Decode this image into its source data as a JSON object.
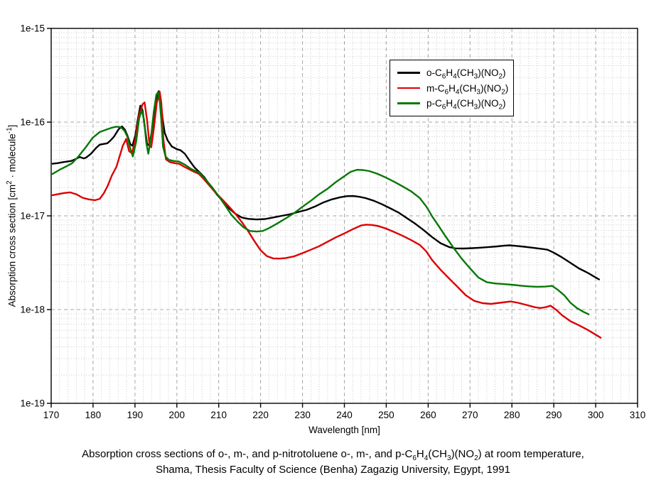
{
  "chart_data": {
    "type": "line",
    "title": "",
    "xlabel": "Wavelength [nm]",
    "ylabel": "Absorption cross section [cm^2^ · molecule^-1^]",
    "x_axis": {
      "min": 170,
      "max": 310,
      "major_tick_step": 10,
      "minor_tick_step": 2,
      "tick_labels": [
        "170",
        "180",
        "190",
        "200",
        "210",
        "220",
        "230",
        "240",
        "250",
        "260",
        "270",
        "280",
        "290",
        "300",
        "310"
      ]
    },
    "y_axis": {
      "scale": "log",
      "min": 1e-19,
      "max": 1e-15,
      "tick_labels": [
        "1e-15",
        "1e-16",
        "1e-17",
        "1e-18",
        "1e-19"
      ],
      "tick_exponents": [
        -15,
        -16,
        -17,
        -18,
        -19
      ]
    },
    "grid": {
      "major": true,
      "minor": true,
      "major_color": "#a8a8a8",
      "minor_color": "#c8c8c8"
    },
    "legend_position": "top-right",
    "series": [
      {
        "name": "o-C|6|H|4|(CH|3|)(NO|2|)",
        "color": "#000000",
        "points": [
          [
            170.3,
            3.6e-17
          ],
          [
            171.5,
            3.65e-17
          ],
          [
            173,
            3.75e-17
          ],
          [
            174.8,
            3.85e-17
          ],
          [
            175.9,
            4.05e-17
          ],
          [
            176.8,
            4.25e-17
          ],
          [
            177.8,
            4.1e-17
          ],
          [
            178.4,
            4.2e-17
          ],
          [
            179.5,
            4.6e-17
          ],
          [
            180.7,
            5.3e-17
          ],
          [
            181.6,
            5.75e-17
          ],
          [
            182.6,
            5.85e-17
          ],
          [
            183.4,
            5.95e-17
          ],
          [
            184.2,
            6.4e-17
          ],
          [
            185,
            7e-17
          ],
          [
            186.1,
            8.4e-17
          ],
          [
            186.9,
            9e-17
          ],
          [
            187.6,
            8.3e-17
          ],
          [
            188.2,
            7.2e-17
          ],
          [
            188.9,
            5.8e-17
          ],
          [
            189.4,
            5.6e-17
          ],
          [
            190.1,
            7.2e-17
          ],
          [
            190.7,
            1.08e-16
          ],
          [
            191.3,
            1.5e-16
          ],
          [
            191.8,
            1.34e-16
          ],
          [
            192.4,
            8.5e-17
          ],
          [
            192.9,
            5.9e-17
          ],
          [
            193.4,
            5.6e-17
          ],
          [
            194,
            7.8e-17
          ],
          [
            194.7,
            1.35e-16
          ],
          [
            195.3,
            2e-16
          ],
          [
            195.7,
            2.14e-16
          ],
          [
            196.1,
            1.8e-16
          ],
          [
            196.6,
            1.1e-16
          ],
          [
            197.1,
            7.7e-17
          ],
          [
            197.8,
            6.4e-17
          ],
          [
            198.8,
            5.5e-17
          ],
          [
            200,
            5.15e-17
          ],
          [
            200.9,
            5e-17
          ],
          [
            201.9,
            4.6e-17
          ],
          [
            203,
            3.9e-17
          ],
          [
            204.2,
            3.3e-17
          ],
          [
            205.3,
            2.95e-17
          ],
          [
            206.5,
            2.6e-17
          ],
          [
            208,
            2.1e-17
          ],
          [
            209.5,
            1.7e-17
          ],
          [
            211,
            1.43e-17
          ],
          [
            212.5,
            1.2e-17
          ],
          [
            214,
            1.05e-17
          ],
          [
            215.5,
            9.6e-18
          ],
          [
            217,
            9.3e-18
          ],
          [
            219,
            9.15e-18
          ],
          [
            221,
            9.25e-18
          ],
          [
            223,
            9.6e-18
          ],
          [
            225,
            1e-17
          ],
          [
            227,
            1.04e-17
          ],
          [
            229,
            1.1e-17
          ],
          [
            231,
            1.16e-17
          ],
          [
            233,
            1.26e-17
          ],
          [
            235,
            1.39e-17
          ],
          [
            237,
            1.5e-17
          ],
          [
            239,
            1.58e-17
          ],
          [
            240.5,
            1.62e-17
          ],
          [
            242,
            1.63e-17
          ],
          [
            243.5,
            1.6e-17
          ],
          [
            245,
            1.55e-17
          ],
          [
            247,
            1.45e-17
          ],
          [
            249,
            1.33e-17
          ],
          [
            251,
            1.2e-17
          ],
          [
            253,
            1.08e-17
          ],
          [
            255,
            9.4e-18
          ],
          [
            257,
            8.2e-18
          ],
          [
            259,
            7e-18
          ],
          [
            261,
            5.9e-18
          ],
          [
            263,
            5.1e-18
          ],
          [
            265,
            4.65e-18
          ],
          [
            266.5,
            4.5e-18
          ],
          [
            268.5,
            4.48e-18
          ],
          [
            270.5,
            4.52e-18
          ],
          [
            272.5,
            4.58e-18
          ],
          [
            274.5,
            4.65e-18
          ],
          [
            276.5,
            4.72e-18
          ],
          [
            278,
            4.8e-18
          ],
          [
            279.5,
            4.85e-18
          ],
          [
            281,
            4.78e-18
          ],
          [
            283,
            4.68e-18
          ],
          [
            285,
            4.57e-18
          ],
          [
            287,
            4.45e-18
          ],
          [
            288.5,
            4.35e-18
          ],
          [
            290,
            4.05e-18
          ],
          [
            292,
            3.6e-18
          ],
          [
            294,
            3.15e-18
          ],
          [
            296,
            2.75e-18
          ],
          [
            298,
            2.48e-18
          ],
          [
            300,
            2.2e-18
          ],
          [
            300.8,
            2.1e-18
          ]
        ]
      },
      {
        "name": "m-C|6|H|4|(CH|3|)(NO|2|)",
        "color": "#dd0000",
        "points": [
          [
            170.3,
            1.66e-17
          ],
          [
            171.5,
            1.7e-17
          ],
          [
            173,
            1.75e-17
          ],
          [
            174.5,
            1.78e-17
          ],
          [
            176,
            1.7e-17
          ],
          [
            177.5,
            1.56e-17
          ],
          [
            179,
            1.5e-17
          ],
          [
            180.5,
            1.47e-17
          ],
          [
            181.6,
            1.52e-17
          ],
          [
            182.6,
            1.75e-17
          ],
          [
            183.5,
            2.1e-17
          ],
          [
            184.5,
            2.7e-17
          ],
          [
            185.6,
            3.35e-17
          ],
          [
            186.4,
            4.4e-17
          ],
          [
            187.1,
            5.6e-17
          ],
          [
            187.9,
            6.6e-17
          ],
          [
            188.6,
            4.9e-17
          ],
          [
            189.3,
            4.65e-17
          ],
          [
            190.1,
            6.5e-17
          ],
          [
            190.9,
            1.15e-16
          ],
          [
            191.8,
            1.55e-16
          ],
          [
            192.3,
            1.62e-16
          ],
          [
            192.9,
            1.05e-16
          ],
          [
            193.5,
            5.6e-17
          ],
          [
            193.9,
            5.4e-17
          ],
          [
            194.5,
            8.5e-17
          ],
          [
            195.2,
            1.6e-16
          ],
          [
            195.9,
            2.12e-16
          ],
          [
            196.3,
            1.6e-16
          ],
          [
            196.8,
            6.5e-17
          ],
          [
            197.4,
            4e-17
          ],
          [
            198.3,
            3.75e-17
          ],
          [
            199.5,
            3.65e-17
          ],
          [
            200.5,
            3.6e-17
          ],
          [
            202,
            3.3e-17
          ],
          [
            203.5,
            3.05e-17
          ],
          [
            205.3,
            2.8e-17
          ],
          [
            206.5,
            2.45e-17
          ],
          [
            208,
            2.05e-17
          ],
          [
            209.5,
            1.72e-17
          ],
          [
            211,
            1.47e-17
          ],
          [
            212.5,
            1.25e-17
          ],
          [
            214,
            1.05e-17
          ],
          [
            215.5,
            8.6e-18
          ],
          [
            217,
            6.9e-18
          ],
          [
            218.5,
            5.4e-18
          ],
          [
            220,
            4.3e-18
          ],
          [
            221.5,
            3.72e-18
          ],
          [
            223,
            3.52e-18
          ],
          [
            224.5,
            3.5e-18
          ],
          [
            226,
            3.55e-18
          ],
          [
            228,
            3.7e-18
          ],
          [
            230,
            4e-18
          ],
          [
            232,
            4.35e-18
          ],
          [
            234,
            4.75e-18
          ],
          [
            236,
            5.3e-18
          ],
          [
            238,
            5.9e-18
          ],
          [
            240,
            6.5e-18
          ],
          [
            242,
            7.2e-18
          ],
          [
            244,
            7.9e-18
          ],
          [
            245.2,
            8.05e-18
          ],
          [
            246.5,
            8e-18
          ],
          [
            248,
            7.8e-18
          ],
          [
            250,
            7.3e-18
          ],
          [
            252,
            6.7e-18
          ],
          [
            254,
            6.1e-18
          ],
          [
            256,
            5.5e-18
          ],
          [
            258,
            4.9e-18
          ],
          [
            259.5,
            4.2e-18
          ],
          [
            261,
            3.35e-18
          ],
          [
            263,
            2.65e-18
          ],
          [
            265,
            2.15e-18
          ],
          [
            267,
            1.75e-18
          ],
          [
            269,
            1.42e-18
          ],
          [
            271,
            1.24e-18
          ],
          [
            273,
            1.17e-18
          ],
          [
            275,
            1.15e-18
          ],
          [
            277,
            1.18e-18
          ],
          [
            279.7,
            1.22e-18
          ],
          [
            281.5,
            1.18e-18
          ],
          [
            283.5,
            1.12e-18
          ],
          [
            285.5,
            1.06e-18
          ],
          [
            286.8,
            1.04e-18
          ],
          [
            288,
            1.06e-18
          ],
          [
            289.2,
            1.1e-18
          ],
          [
            290.5,
            1e-18
          ],
          [
            292,
            8.7e-19
          ],
          [
            294,
            7.5e-19
          ],
          [
            296,
            6.8e-19
          ],
          [
            298,
            6.1e-19
          ],
          [
            300,
            5.4e-19
          ],
          [
            301.2,
            5e-19
          ]
        ]
      },
      {
        "name": "p-C|6|H|4|(CH|3|)(NO|2|)",
        "color": "#067806",
        "points": [
          [
            170.3,
            2.8e-17
          ],
          [
            172,
            3.1e-17
          ],
          [
            173.5,
            3.35e-17
          ],
          [
            175,
            3.65e-17
          ],
          [
            176.5,
            4.3e-17
          ],
          [
            178.2,
            5.35e-17
          ],
          [
            179.9,
            6.8e-17
          ],
          [
            181.6,
            7.85e-17
          ],
          [
            183.3,
            8.35e-17
          ],
          [
            184.4,
            8.7e-17
          ],
          [
            185.5,
            8.95e-17
          ],
          [
            186.6,
            8.85e-17
          ],
          [
            187.5,
            8.1e-17
          ],
          [
            188.2,
            7e-17
          ],
          [
            188.9,
            5.2e-17
          ],
          [
            189.5,
            4.3e-17
          ],
          [
            190.3,
            6.2e-17
          ],
          [
            191,
            1.1e-16
          ],
          [
            191.6,
            1.34e-16
          ],
          [
            192.2,
            1.05e-16
          ],
          [
            192.7,
            6e-17
          ],
          [
            193.2,
            4.6e-17
          ],
          [
            193.8,
            6.8e-17
          ],
          [
            194.5,
            1.3e-16
          ],
          [
            195.1,
            1.95e-16
          ],
          [
            195.5,
            2.08e-16
          ],
          [
            195.9,
            1.7e-16
          ],
          [
            196.3,
            1.05e-16
          ],
          [
            196.7,
            5.5e-17
          ],
          [
            197.3,
            4.3e-17
          ],
          [
            198.1,
            3.95e-17
          ],
          [
            199.2,
            3.85e-17
          ],
          [
            200.5,
            3.8e-17
          ],
          [
            202,
            3.5e-17
          ],
          [
            203.5,
            3.15e-17
          ],
          [
            205.3,
            2.9e-17
          ],
          [
            207,
            2.4e-17
          ],
          [
            208.5,
            2e-17
          ],
          [
            210,
            1.62e-17
          ],
          [
            211.5,
            1.3e-17
          ],
          [
            213,
            1.03e-17
          ],
          [
            214.5,
            8.7e-18
          ],
          [
            216,
            7.5e-18
          ],
          [
            217.5,
            6.9e-18
          ],
          [
            219,
            6.8e-18
          ],
          [
            220.5,
            6.9e-18
          ],
          [
            222,
            7.4e-18
          ],
          [
            224,
            8.3e-18
          ],
          [
            226,
            9.4e-18
          ],
          [
            228,
            1.07e-17
          ],
          [
            230,
            1.25e-17
          ],
          [
            232,
            1.45e-17
          ],
          [
            234,
            1.7e-17
          ],
          [
            236,
            1.95e-17
          ],
          [
            238,
            2.3e-17
          ],
          [
            240,
            2.65e-17
          ],
          [
            241.5,
            2.95e-17
          ],
          [
            243,
            3.1e-17
          ],
          [
            244.5,
            3.08e-17
          ],
          [
            246,
            3e-17
          ],
          [
            248,
            2.8e-17
          ],
          [
            250,
            2.55e-17
          ],
          [
            252,
            2.3e-17
          ],
          [
            254,
            2.05e-17
          ],
          [
            256,
            1.82e-17
          ],
          [
            258,
            1.55e-17
          ],
          [
            259.6,
            1.25e-17
          ],
          [
            261,
            9.8e-18
          ],
          [
            262.5,
            7.8e-18
          ],
          [
            264,
            6.2e-18
          ],
          [
            266,
            4.6e-18
          ],
          [
            268,
            3.5e-18
          ],
          [
            270,
            2.75e-18
          ],
          [
            272,
            2.2e-18
          ],
          [
            274,
            1.96e-18
          ],
          [
            276,
            1.9e-18
          ],
          [
            278,
            1.87e-18
          ],
          [
            280,
            1.84e-18
          ],
          [
            282,
            1.8e-18
          ],
          [
            284,
            1.77e-18
          ],
          [
            286,
            1.75e-18
          ],
          [
            288,
            1.76e-18
          ],
          [
            289.6,
            1.79e-18
          ],
          [
            291,
            1.62e-18
          ],
          [
            292.5,
            1.42e-18
          ],
          [
            294,
            1.18e-18
          ],
          [
            295.5,
            1.04e-18
          ],
          [
            297,
            9.5e-19
          ],
          [
            298.3,
            8.9e-19
          ]
        ]
      }
    ]
  },
  "caption": {
    "line1": "Absorption cross sections of o-, m-, and p-nitrotoluene o-, m-, and p-C|6|H|4|(CH|3|)(NO|2|) at room temperature,",
    "line2": "Shama, Thesis Faculty of Science (Benha) Zagazig University, Egypt, 1991"
  }
}
